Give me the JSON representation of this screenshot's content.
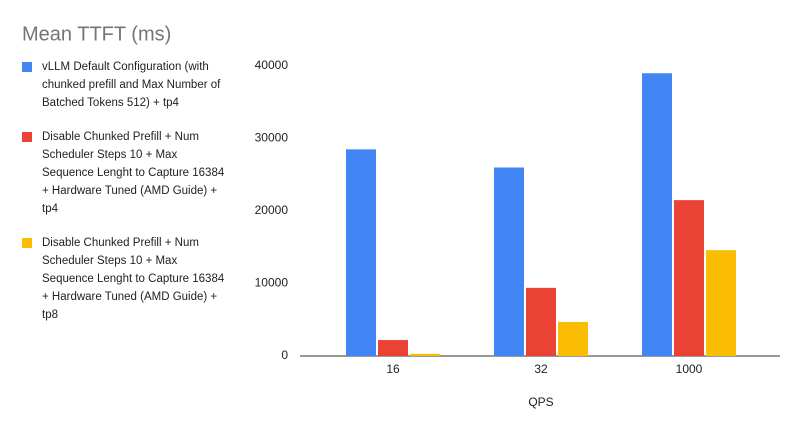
{
  "chart_data": {
    "type": "bar",
    "title": "Mean TTFT (ms)",
    "x_label": "QPS",
    "categories": [
      "16",
      "32",
      "1000"
    ],
    "series": [
      {
        "name": "vLLM Default Configuration (with chunked prefill and Max Number of Batched Tokens 512) + tp4",
        "color": "#4285f4",
        "values": [
          28500,
          26000,
          39000
        ]
      },
      {
        "name": "Disable Chunked Prefill + Num Scheduler Steps 10 + Max Sequence Lenght to Capture 16384 + Hardware Tuned (AMD Guide) + tp4",
        "color": "#ea4335",
        "values": [
          2200,
          9400,
          21500
        ]
      },
      {
        "name": "Disable Chunked Prefill + Num Scheduler Steps 10 + Max Sequence Lenght to Capture 16384 + Hardware Tuned (AMD Guide) + tp8",
        "color": "#fbbc04",
        "values": [
          300,
          4700,
          14600
        ]
      }
    ],
    "ylim": [
      0,
      40000
    ],
    "yticks": [
      0,
      10000,
      20000,
      30000,
      40000
    ],
    "grid": false,
    "legend": "left"
  }
}
